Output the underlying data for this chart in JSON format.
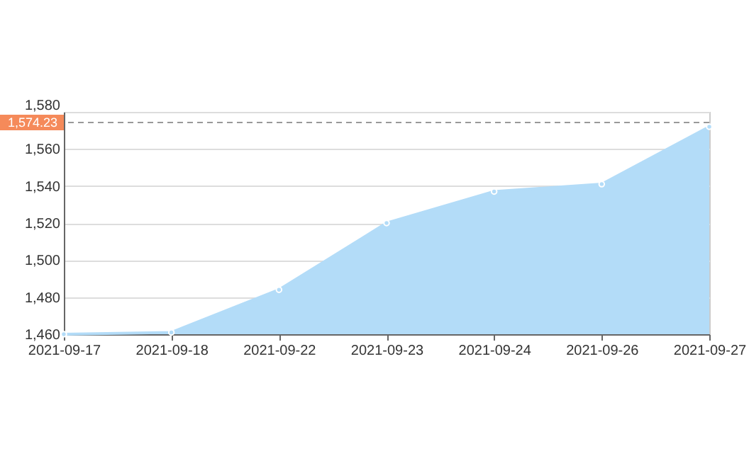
{
  "chart_data": {
    "type": "area",
    "categories": [
      "2021-09-17",
      "2021-09-18",
      "2021-09-22",
      "2021-09-23",
      "2021-09-24",
      "2021-09-26",
      "2021-09-27"
    ],
    "series": [
      {
        "color": "#b3dcf8",
        "values": [
          1460,
          1461,
          1484,
          1520,
          1537,
          1541,
          1572
        ]
      }
    ],
    "ylim": [
      1460,
      1580
    ],
    "yticks": [
      {
        "value": 1460,
        "label": "1,460"
      },
      {
        "value": 1480,
        "label": "1,480"
      },
      {
        "value": 1500,
        "label": "1,500"
      },
      {
        "value": 1520,
        "label": "1,520"
      },
      {
        "value": 1540,
        "label": "1,540"
      },
      {
        "value": 1560,
        "label": "1,560"
      },
      {
        "value": 1580,
        "label": "1,580"
      }
    ],
    "grid": "y",
    "marker": "circle",
    "ref_lines": [
      {
        "axis": "y",
        "value": 1574.23,
        "label": "1,574.23",
        "color": "#999999",
        "line_style": "dashed"
      }
    ]
  }
}
